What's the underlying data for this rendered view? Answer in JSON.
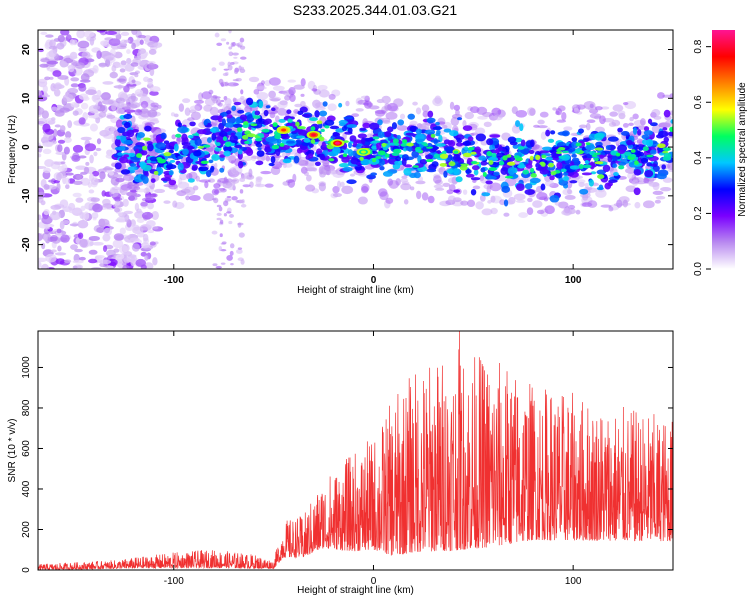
{
  "chart_data": [
    {
      "type": "heatmap",
      "title": "S233.2025.344.01.03.G21",
      "xlabel": "Height of straight line (km)",
      "ylabel": "Frequency (Hz)",
      "xlim": [
        -168,
        150
      ],
      "ylim": [
        -25,
        24
      ],
      "xticks": [
        -100,
        0,
        100
      ],
      "yticks": [
        -20,
        -10,
        0,
        10,
        20
      ],
      "colorbar": {
        "label": "Normalized spectral amplitude",
        "range": [
          0.0,
          0.86
        ],
        "ticks": [
          0.0,
          0.2,
          0.4,
          0.6,
          0.8
        ],
        "colors": [
          "#ffffff",
          "#b98af0",
          "#7a00ff",
          "#0000ff",
          "#00c8ff",
          "#00ff60",
          "#ffff00",
          "#ff8000",
          "#ff0000",
          "#ff1493"
        ]
      },
      "description_centerline": [
        {
          "x": -120,
          "y": -2
        },
        {
          "x": -90,
          "y": -1
        },
        {
          "x": -70,
          "y": 3
        },
        {
          "x": -40,
          "y": 3
        },
        {
          "x": -20,
          "y": 1
        },
        {
          "x": 0,
          "y": -1
        },
        {
          "x": 30,
          "y": 0
        },
        {
          "x": 60,
          "y": -3
        },
        {
          "x": 90,
          "y": -3
        },
        {
          "x": 120,
          "y": -2
        },
        {
          "x": 150,
          "y": 0
        }
      ],
      "peaks": [
        {
          "x": -45,
          "y": 3.5,
          "v": 0.72
        },
        {
          "x": -30,
          "y": 2.5,
          "v": 0.8
        },
        {
          "x": -18,
          "y": 0.8,
          "v": 0.85
        },
        {
          "x": -5,
          "y": -1,
          "v": 0.55
        }
      ]
    },
    {
      "type": "line",
      "xlabel": "Height of straight line (km)",
      "ylabel": "SNR (10 * v/v)",
      "xlim": [
        -168,
        150
      ],
      "ylim": [
        0,
        1180
      ],
      "xticks": [
        -100,
        0,
        100
      ],
      "yticks": [
        0,
        200,
        400,
        600,
        800,
        1000
      ],
      "line_color": "#f03030",
      "envelope": [
        {
          "x": -168,
          "base": 10,
          "amp": 20
        },
        {
          "x": -130,
          "base": 20,
          "amp": 30
        },
        {
          "x": -100,
          "base": 35,
          "amp": 55
        },
        {
          "x": -80,
          "base": 40,
          "amp": 65
        },
        {
          "x": -60,
          "base": 30,
          "amp": 50
        },
        {
          "x": -50,
          "base": 20,
          "amp": 30
        },
        {
          "x": -45,
          "base": 120,
          "amp": 130
        },
        {
          "x": -35,
          "base": 130,
          "amp": 150
        },
        {
          "x": -25,
          "base": 220,
          "amp": 250
        },
        {
          "x": -10,
          "base": 250,
          "amp": 350
        },
        {
          "x": 0,
          "base": 280,
          "amp": 400
        },
        {
          "x": 10,
          "base": 320,
          "amp": 560
        },
        {
          "x": 20,
          "base": 380,
          "amp": 650
        },
        {
          "x": 40,
          "base": 420,
          "amp": 720
        },
        {
          "x": 60,
          "base": 420,
          "amp": 680
        },
        {
          "x": 80,
          "base": 400,
          "amp": 560
        },
        {
          "x": 100,
          "base": 380,
          "amp": 520
        },
        {
          "x": 120,
          "base": 360,
          "amp": 480
        },
        {
          "x": 150,
          "base": 340,
          "amp": 440
        }
      ],
      "max_value": 1180,
      "max_at_x": 43
    }
  ]
}
